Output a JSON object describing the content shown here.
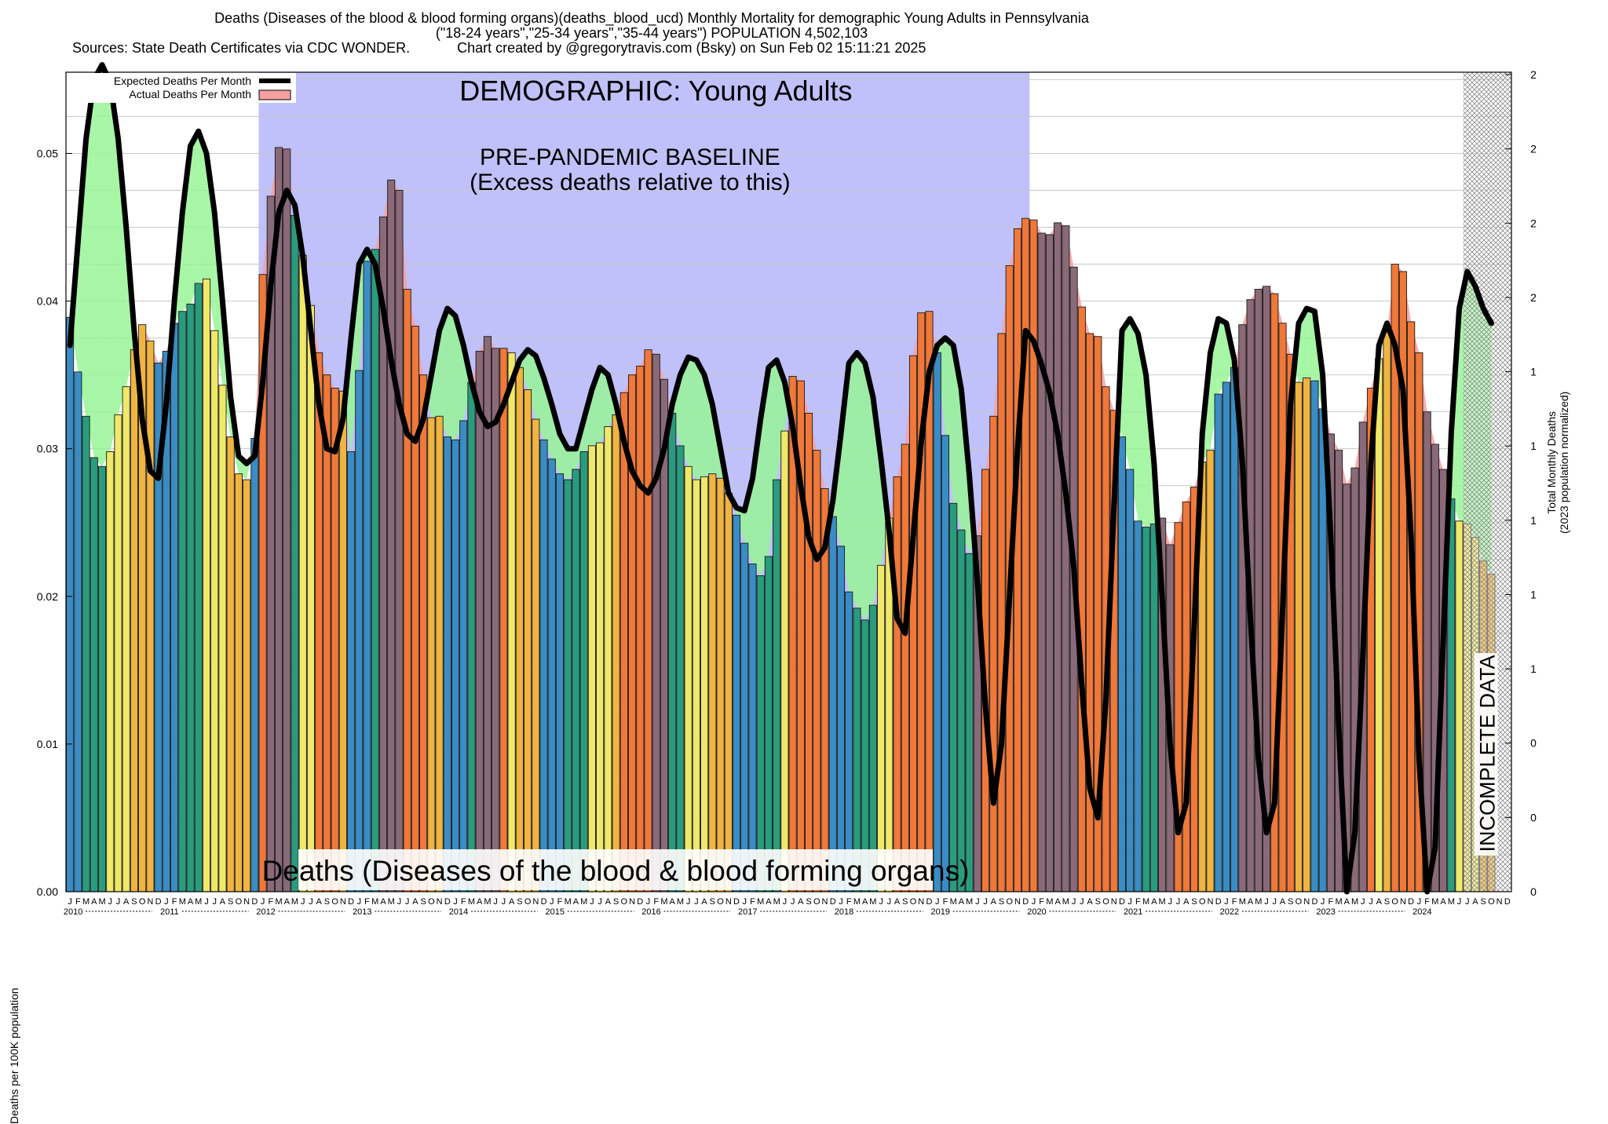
{
  "header": {
    "line1": "Deaths (Diseases of the blood & blood forming organs)(deaths_blood_ucd) Monthly Mortality for demographic Young Adults in Pennsylvania",
    "line2": "(\"18-24 years\",\"25-34 years\",\"35-44 years\") POPULATION 4,502,103",
    "line3": "Sources: State Death Certificates via CDC WONDER.            Chart created by @gregorytravis.com (Bsky) on Sun Feb 02 15:11:21 2025"
  },
  "chart_data": {
    "type": "bar",
    "title": "Deaths (Diseases of the blood & blood forming organs)(deaths_blood_ucd) Monthly Mortality for demographic Young Adults in Pennsylvania",
    "ylabel": "Deaths per 100K population",
    "y2label": "Total Monthly Deaths",
    "y2label_sub": "(2023 population normalized)",
    "ylim": [
      0,
      0.0555
    ],
    "yticks": [
      "0.00",
      "0.01",
      "0.02",
      "0.03",
      "0.04",
      "0.05"
    ],
    "y2ticks": [
      "0",
      "0",
      "0",
      "1",
      "1",
      "1",
      "1",
      "1",
      "2",
      "2",
      "2",
      "2"
    ],
    "month_letters": [
      "J",
      "F",
      "M",
      "A",
      "M",
      "J",
      "J",
      "A",
      "S",
      "O",
      "N",
      "D"
    ],
    "years": [
      "2010",
      "2011",
      "2012",
      "2013",
      "2014",
      "2015",
      "2016",
      "2017",
      "2018",
      "2019",
      "2020",
      "2021",
      "2022",
      "2023",
      "2024"
    ],
    "legend": [
      "Expected Deaths Per Month",
      "Actual Deaths Per Month"
    ],
    "legend_placement": "top-left",
    "grid": true,
    "annotations": {
      "demographic": "DEMOGRAPHIC: Young Adults",
      "baseline_line1": "PRE-PANDEMIC BASELINE",
      "baseline_line2": "(Excess deaths relative to this)",
      "bottom_title": "Deaths (Diseases of the blood & blood forming organs)",
      "incomplete": "INCOMPLETE DATA"
    },
    "baseline_period": {
      "start": "2012-01",
      "end": "2019-12"
    },
    "incomplete_period": {
      "start": "2024-07",
      "end": "2024-12"
    },
    "actual": [
      0.0389,
      0.0352,
      0.0322,
      0.0294,
      0.0288,
      0.0298,
      0.0323,
      0.0342,
      0.0367,
      0.0384,
      0.0373,
      0.0358,
      0.0366,
      0.0385,
      0.0393,
      0.0398,
      0.0412,
      0.0415,
      0.038,
      0.0343,
      0.0308,
      0.0283,
      0.0279,
      0.0307,
      0.0418,
      0.0471,
      0.0504,
      0.0503,
      0.0458,
      0.0431,
      0.0397,
      0.0365,
      0.035,
      0.0341,
      0.0339,
      0.0298,
      0.0353,
      0.0427,
      0.0435,
      0.0457,
      0.0482,
      0.0475,
      0.0408,
      0.0383,
      0.035,
      0.0321,
      0.0322,
      0.0308,
      0.0306,
      0.0319,
      0.0345,
      0.0366,
      0.0376,
      0.0368,
      0.0368,
      0.0365,
      0.0355,
      0.034,
      0.032,
      0.0306,
      0.0293,
      0.0283,
      0.0279,
      0.0286,
      0.0298,
      0.0302,
      0.0304,
      0.0315,
      0.0323,
      0.0338,
      0.035,
      0.0356,
      0.0367,
      0.0364,
      0.0347,
      0.0324,
      0.0302,
      0.0288,
      0.0279,
      0.0281,
      0.0283,
      0.028,
      0.027,
      0.0255,
      0.0236,
      0.0222,
      0.0214,
      0.0227,
      0.0279,
      0.0312,
      0.0349,
      0.0346,
      0.0324,
      0.0299,
      0.0273,
      0.0254,
      0.0234,
      0.0203,
      0.0192,
      0.0184,
      0.0194,
      0.0221,
      0.0253,
      0.0281,
      0.0303,
      0.0363,
      0.0392,
      0.0393,
      0.0365,
      0.0309,
      0.0263,
      0.0245,
      0.0229,
      0.0241,
      0.0286,
      0.0322,
      0.0378,
      0.0424,
      0.0449,
      0.0456,
      0.0455,
      0.0446,
      0.0445,
      0.0453,
      0.0451,
      0.0423,
      0.0396,
      0.0378,
      0.0376,
      0.0342,
      0.0326,
      0.0308,
      0.0286,
      0.0251,
      0.0247,
      0.0249,
      0.0253,
      0.0235,
      0.025,
      0.0264,
      0.0274,
      0.0291,
      0.0299,
      0.0337,
      0.0345,
      0.0355,
      0.0384,
      0.0401,
      0.0408,
      0.041,
      0.0405,
      0.0385,
      0.0364,
      0.0345,
      0.0348,
      0.0346,
      0.0327,
      0.031,
      0.0299,
      0.0276,
      0.0287,
      0.0318,
      0.0341,
      0.0361,
      0.0379,
      0.0425,
      0.042,
      0.0386,
      0.0365,
      0.0325,
      0.0303,
      0.0286,
      0.0266,
      0.0251,
      0.0249,
      0.024,
      0.0224,
      0.0215
    ],
    "expected": [
      0.037,
      0.044,
      0.051,
      0.055,
      0.056,
      0.0548,
      0.051,
      0.045,
      0.038,
      0.032,
      0.0285,
      0.028,
      0.033,
      0.04,
      0.046,
      0.0505,
      0.0515,
      0.05,
      0.046,
      0.04,
      0.0335,
      0.0295,
      0.029,
      0.0295,
      0.0345,
      0.041,
      0.046,
      0.0475,
      0.0465,
      0.043,
      0.038,
      0.033,
      0.03,
      0.0298,
      0.032,
      0.0375,
      0.0425,
      0.0435,
      0.0425,
      0.0395,
      0.036,
      0.033,
      0.031,
      0.0305,
      0.032,
      0.035,
      0.038,
      0.0395,
      0.039,
      0.037,
      0.0345,
      0.0325,
      0.0315,
      0.0318,
      0.033,
      0.0345,
      0.036,
      0.0367,
      0.0363,
      0.0348,
      0.033,
      0.031,
      0.03,
      0.03,
      0.032,
      0.034,
      0.0355,
      0.035,
      0.033,
      0.0305,
      0.0285,
      0.0275,
      0.027,
      0.028,
      0.03,
      0.033,
      0.035,
      0.0362,
      0.036,
      0.035,
      0.033,
      0.03,
      0.027,
      0.026,
      0.0258,
      0.028,
      0.032,
      0.0355,
      0.036,
      0.0345,
      0.0315,
      0.0275,
      0.024,
      0.0225,
      0.0233,
      0.0265,
      0.031,
      0.0358,
      0.0365,
      0.0358,
      0.0335,
      0.0293,
      0.0245,
      0.0185,
      0.0175,
      0.024,
      0.0305,
      0.0352,
      0.037,
      0.0375,
      0.037,
      0.034,
      0.0282,
      0.021,
      0.0125,
      0.006,
      0.01,
      0.02,
      0.03,
      0.038,
      0.0373,
      0.0357,
      0.0338,
      0.031,
      0.027,
      0.022,
      0.014,
      0.007,
      0.005,
      0.013,
      0.026,
      0.038,
      0.0388,
      0.0378,
      0.035,
      0.029,
      0.02,
      0.01,
      0.004,
      0.006,
      0.018,
      0.031,
      0.0365,
      0.0388,
      0.0385,
      0.036,
      0.029,
      0.0185,
      0.009,
      0.004,
      0.006,
      0.019,
      0.033,
      0.0385,
      0.0395,
      0.0393,
      0.035,
      0.024,
      0.011,
      0.0,
      0.004,
      0.016,
      0.029,
      0.037,
      0.0385,
      0.037,
      0.034,
      0.024,
      0.009,
      0.0,
      0.003,
      0.017,
      0.031,
      0.0395,
      0.042,
      0.041,
      0.0395,
      0.0385
    ],
    "palette": {
      "winter": "#3a8cc4",
      "spring": "#2a9c7e",
      "summer": "#f0e868",
      "autumn": "#f0b440",
      "excess_warm": "#f07838",
      "excess_cool": "#8a6a78",
      "excess_fill": "#f4a0a0",
      "deficit_fill": "#96f596",
      "baseline_bg": "#c0c0fa",
      "expected_line": "#000000"
    }
  }
}
